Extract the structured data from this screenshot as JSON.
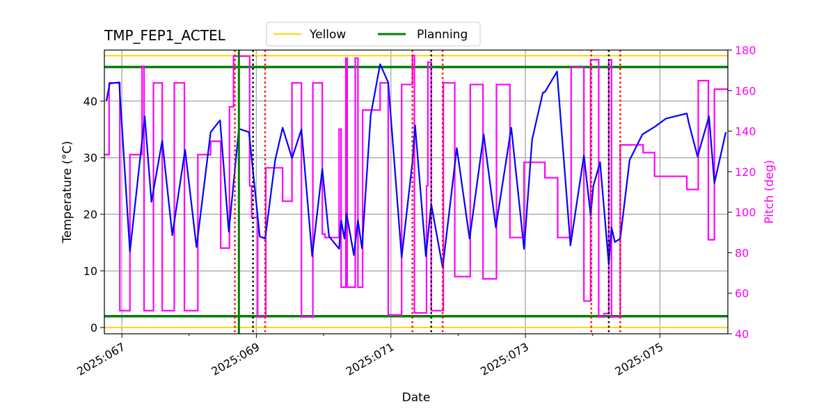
{
  "chart_data": {
    "type": "line",
    "title": "TMP_FEP1_ACTEL",
    "xlabel": "Date",
    "ylabel": "Temperature (°C)",
    "y2label": "Pitch (deg)",
    "xlim": [
      66.74,
      76.01
    ],
    "ylim": [
      -1.1,
      49.0
    ],
    "y2lim": [
      40,
      180
    ],
    "x_ticks": [
      {
        "value": 67,
        "label": "2025:067"
      },
      {
        "value": 69,
        "label": "2025:069"
      },
      {
        "value": 71,
        "label": "2025:071"
      },
      {
        "value": 73,
        "label": "2025:073"
      },
      {
        "value": 75,
        "label": "2025:075"
      }
    ],
    "x_minor_ticks": [
      68,
      70,
      72,
      74
    ],
    "y_ticks": [
      0,
      10,
      20,
      30,
      40
    ],
    "y2_ticks": [
      40,
      60,
      80,
      100,
      120,
      140,
      160,
      180
    ],
    "grid": true,
    "legend": {
      "placement": "top-center",
      "entries": [
        {
          "name": "Yellow",
          "color": "#ffd700"
        },
        {
          "name": "Planning",
          "color": "#008000"
        }
      ]
    },
    "limit_lines": [
      {
        "name": "Yellow",
        "values": [
          48,
          0
        ],
        "color": "#ffd700"
      },
      {
        "name": "Planning",
        "values": [
          46,
          2
        ],
        "color": "#008000"
      }
    ],
    "vertical_lines": [
      {
        "x": 68.68,
        "color": "#ff0000",
        "style": "dotted"
      },
      {
        "x": 69.13,
        "color": "#ff0000",
        "style": "dotted"
      },
      {
        "x": 71.32,
        "color": "#ff0000",
        "style": "dotted"
      },
      {
        "x": 71.77,
        "color": "#ff0000",
        "style": "dotted"
      },
      {
        "x": 73.98,
        "color": "#ff0000",
        "style": "dotted"
      },
      {
        "x": 74.41,
        "color": "#ff0000",
        "style": "dotted"
      },
      {
        "x": 68.95,
        "color": "#000000",
        "style": "dotted"
      },
      {
        "x": 71.6,
        "color": "#000000",
        "style": "dotted"
      },
      {
        "x": 74.24,
        "color": "#000000",
        "style": "dotted"
      },
      {
        "x": 68.74,
        "color": "#008000",
        "style": "solid"
      }
    ],
    "temperature": {
      "color": "#0000ff",
      "x": [
        66.77,
        66.82,
        66.96,
        67.12,
        67.34,
        67.44,
        67.6,
        67.75,
        67.94,
        68.11,
        68.32,
        68.46,
        68.59,
        68.74,
        68.89,
        69.05,
        69.13,
        69.28,
        69.39,
        69.53,
        69.67,
        69.83,
        69.98,
        70.08,
        70.23,
        70.26,
        70.31,
        70.34,
        70.45,
        70.51,
        70.57,
        70.7,
        70.84,
        70.96,
        71.16,
        71.32,
        71.36,
        71.52,
        71.6,
        71.77,
        71.98,
        72.17,
        72.38,
        72.56,
        72.79,
        72.98,
        73.1,
        73.26,
        73.29,
        73.47,
        73.67,
        73.87,
        73.97,
        74.01,
        74.11,
        74.24,
        74.28,
        74.33,
        74.41,
        74.55,
        74.74,
        74.93,
        75.09,
        75.4,
        75.43,
        75.56,
        75.73,
        75.81,
        75.98
      ],
      "y": [
        40.0,
        43.1,
        43.3,
        13.4,
        37.3,
        22.2,
        33.0,
        16.3,
        31.4,
        14.2,
        34.5,
        36.6,
        16.9,
        35.1,
        34.5,
        16.1,
        15.7,
        29.6,
        35.3,
        29.9,
        35.0,
        12.6,
        28.0,
        16.1,
        13.9,
        18.9,
        15.7,
        20.1,
        12.8,
        18.9,
        14.0,
        37.5,
        46.5,
        43.3,
        12.4,
        29.2,
        35.7,
        12.6,
        21.8,
        10.6,
        31.7,
        15.7,
        34.1,
        17.7,
        35.3,
        13.9,
        33.2,
        41.5,
        41.6,
        45.2,
        14.5,
        30.4,
        19.8,
        25.0,
        29.2,
        11.2,
        17.7,
        15.1,
        15.7,
        29.6,
        34.1,
        35.5,
        36.9,
        37.8,
        36.1,
        30.2,
        37.3,
        25.5,
        34.5
      ]
    },
    "pitch": {
      "color": "#ff00ff",
      "step": true,
      "x": [
        66.74,
        66.81,
        66.97,
        67.12,
        67.3,
        67.33,
        67.47,
        67.6,
        67.78,
        67.93,
        68.13,
        68.32,
        68.47,
        68.6,
        68.66,
        68.9,
        68.93,
        69.02,
        69.14,
        69.39,
        69.53,
        69.67,
        69.84,
        69.98,
        70.02,
        70.23,
        70.26,
        70.33,
        70.35,
        70.47,
        70.51,
        70.58,
        70.84,
        70.96,
        71.16,
        71.32,
        71.35,
        71.53,
        71.55,
        71.6,
        71.78,
        71.95,
        72.18,
        72.37,
        72.57,
        72.77,
        72.98,
        73.29,
        73.48,
        73.68,
        73.87,
        73.97,
        74.09,
        74.17,
        74.24,
        74.28,
        74.41,
        74.75,
        74.92,
        75.4,
        75.57,
        75.72,
        75.81,
        76.01
      ],
      "y": [
        128.4,
        163.8,
        51.4,
        128.4,
        172,
        51.4,
        163.8,
        51.4,
        163.8,
        51.4,
        128.4,
        135,
        82.3,
        152,
        177,
        113,
        97.4,
        48.3,
        121.9,
        105.4,
        163.8,
        48.3,
        163.8,
        89.2,
        87.5,
        141,
        63,
        176,
        63,
        176,
        63,
        150.4,
        163.8,
        49.3,
        163,
        177.3,
        50.3,
        113,
        174,
        51.4,
        163.8,
        68.2,
        163,
        67.1,
        163,
        87.5,
        124.6,
        117,
        87.5,
        171.4,
        56.2,
        175.2,
        48.3,
        50,
        175.2,
        48.3,
        133.2,
        129.4,
        117.7,
        111.2,
        164.9,
        86.4,
        160.7,
        160.7
      ]
    }
  }
}
